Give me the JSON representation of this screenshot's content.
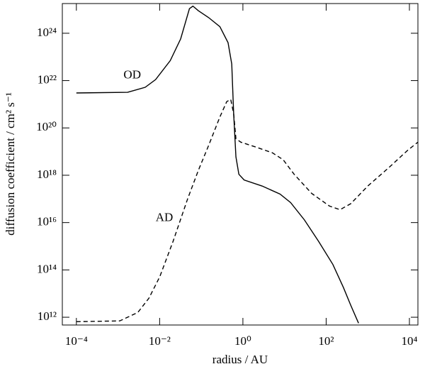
{
  "chart_data": {
    "type": "line",
    "xlabel": "radius / AU",
    "ylabel": "diffusion coefficient / cm² s⁻¹",
    "xscale": "log",
    "yscale": "log",
    "xlim": [
      4.6e-05,
      16000.0
    ],
    "ylim": [
      470000000000.0,
      1.8e+25
    ],
    "xticks": [
      {
        "value": 0.0001,
        "label": "10⁻⁴"
      },
      {
        "value": 0.01,
        "label": "10⁻²"
      },
      {
        "value": 1,
        "label": "10⁰"
      },
      {
        "value": 100,
        "label": "10²"
      },
      {
        "value": 10000.0,
        "label": "10⁴"
      }
    ],
    "yticks": [
      {
        "value": 1000000000000.0,
        "label": "10¹²"
      },
      {
        "value": 100000000000000.0,
        "label": "10¹⁴"
      },
      {
        "value": 1e+16,
        "label": "10¹⁶"
      },
      {
        "value": 1e+18,
        "label": "10¹⁸"
      },
      {
        "value": 1e+20,
        "label": "10²⁰"
      },
      {
        "value": 1e+22,
        "label": "10²²"
      },
      {
        "value": 1e+24,
        "label": "10²⁴"
      }
    ],
    "series": [
      {
        "name": "OD",
        "color": "#000000",
        "line_style": "solid",
        "x": [
          0.0001,
          0.0017,
          0.0045,
          0.008,
          0.018,
          0.032,
          0.052,
          0.063,
          0.085,
          0.15,
          0.28,
          0.44,
          0.54,
          0.6,
          0.68,
          0.8,
          1.07,
          2.9,
          7.8,
          14,
          30,
          66,
          145,
          260,
          390,
          600
        ],
        "values": [
          3e+21,
          3.2e+21,
          5.2e+21,
          1.1e+22,
          7e+22,
          5.8e+23,
          1.1e+25,
          1.4e+25,
          9e+24,
          4.6e+24,
          1.9e+24,
          4e+23,
          5e+22,
          4e+20,
          6e+18,
          1.1e+18,
          6.3e+17,
          3.5e+17,
          1.6e+17,
          7e+16,
          1.3e+16,
          1600000000000000.0,
          170000000000000.0,
          18000000000000.0,
          3200000000000.0,
          560000000000.0
        ],
        "label_at": [
          0.0022,
          1.6e+22
        ]
      },
      {
        "name": "AD",
        "color": "#000000",
        "line_style": "dashed",
        "x": [
          0.0001,
          0.0011,
          0.003,
          0.0055,
          0.01,
          0.021,
          0.047,
          0.085,
          0.15,
          0.28,
          0.41,
          0.51,
          0.6,
          0.68,
          0.89,
          1.95,
          5.1,
          9.3,
          17,
          45,
          120,
          215,
          390,
          1000,
          3300,
          8900,
          16000
        ],
        "values": [
          650000000000.0,
          700000000000.0,
          1600000000000.0,
          6300000000000.0,
          50000000000000.0,
          1600000000000000.0,
          1e+17,
          1.6e+18,
          1.8e+19,
          2.9e+20,
          1.3e+21,
          1.6e+21,
          4e+20,
          3.5e+19,
          2.5e+19,
          1.6e+19,
          8.9e+18,
          4.5e+18,
          1.1e+18,
          1.7e+17,
          5e+16,
          3.5e+16,
          6.3e+16,
          3.5e+17,
          2.2e+18,
          1.1e+19,
          2.5e+19
        ],
        "label_at": [
          0.013,
          1.5e+16
        ]
      }
    ]
  }
}
